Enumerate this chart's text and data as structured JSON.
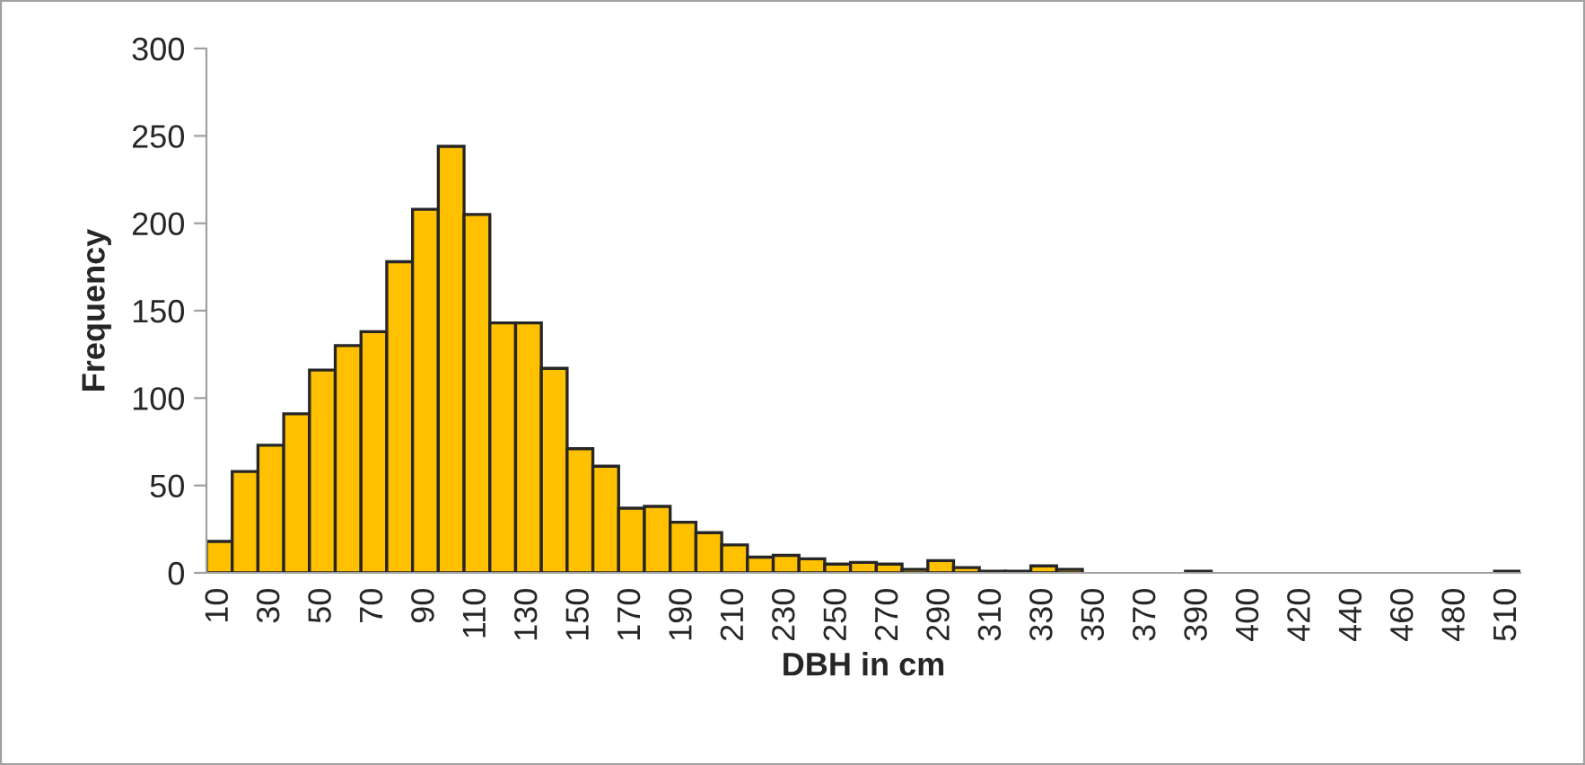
{
  "chart_data": {
    "type": "bar",
    "xlabel": "DBH in cm",
    "ylabel": "Frequency",
    "categories": [
      "10",
      null,
      "30",
      null,
      "50",
      null,
      "70",
      null,
      "90",
      null,
      "110",
      null,
      "130",
      null,
      "150",
      null,
      "170",
      null,
      "190",
      null,
      "210",
      null,
      "230",
      null,
      "250",
      null,
      "270",
      null,
      "290",
      null,
      "310",
      null,
      "330",
      null,
      "350",
      null,
      "370",
      null,
      "390",
      null,
      "400",
      null,
      "420",
      null,
      "440",
      null,
      "460",
      null,
      "480",
      null,
      "510"
    ],
    "values": [
      18,
      58,
      73,
      91,
      116,
      130,
      138,
      178,
      208,
      244,
      205,
      143,
      143,
      117,
      71,
      61,
      37,
      38,
      29,
      23,
      16,
      9,
      10,
      8,
      5,
      6,
      5,
      2,
      7,
      3,
      1,
      1,
      4,
      2,
      0,
      0,
      0,
      0,
      1,
      0,
      0,
      0,
      0,
      0,
      0,
      0,
      0,
      0,
      0,
      0,
      1
    ],
    "color": "#ffc000",
    "ylim": [
      0,
      300
    ],
    "yticks": [
      0,
      50,
      100,
      150,
      200,
      250,
      300
    ],
    "grid": false,
    "legend": false
  }
}
